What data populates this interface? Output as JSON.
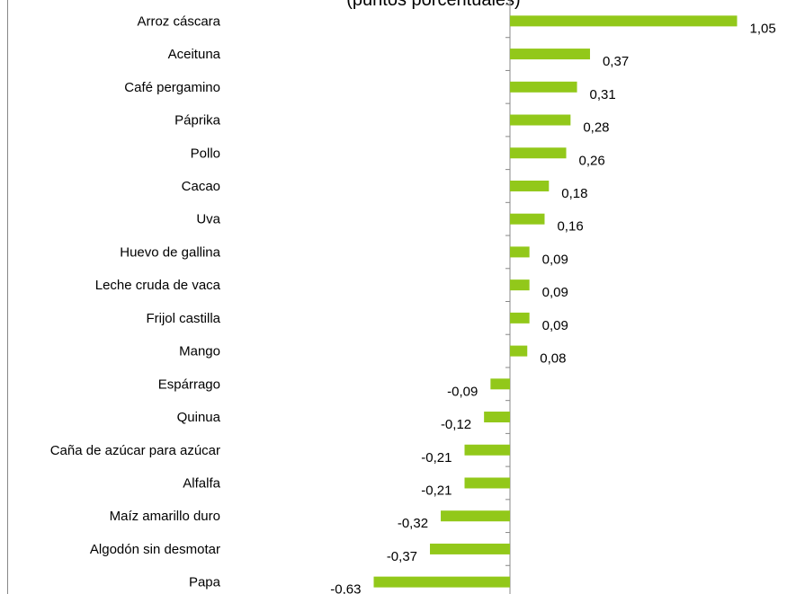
{
  "chart_data": {
    "type": "bar",
    "orientation": "horizontal",
    "title": "(puntos porcentuales)",
    "categories": [
      "Arroz cáscara",
      "Aceituna",
      "Café pergamino",
      "Páprika",
      "Pollo",
      "Cacao",
      "Uva",
      "Huevo de gallina",
      "Leche cruda de vaca",
      "Frijol castilla",
      "Mango",
      "Espárrago",
      "Quinua",
      "Caña de azúcar para azúcar",
      "Alfalfa",
      "Maíz amarillo duro",
      "Algodón sin desmotar",
      "Papa"
    ],
    "values": [
      1.05,
      0.37,
      0.31,
      0.28,
      0.26,
      0.18,
      0.16,
      0.09,
      0.09,
      0.09,
      0.08,
      -0.09,
      -0.12,
      -0.21,
      -0.21,
      -0.32,
      -0.37,
      -0.63
    ],
    "value_labels": [
      "1,05",
      "0,37",
      "0,31",
      "0,28",
      "0,26",
      "0,18",
      "0,16",
      "0,09",
      "0,09",
      "0,09",
      "0,08",
      "-0,09",
      "-0,12",
      "-0,21",
      "-0,21",
      "-0,32",
      "-0,37",
      "-0,63"
    ],
    "color": "#92c81a"
  }
}
